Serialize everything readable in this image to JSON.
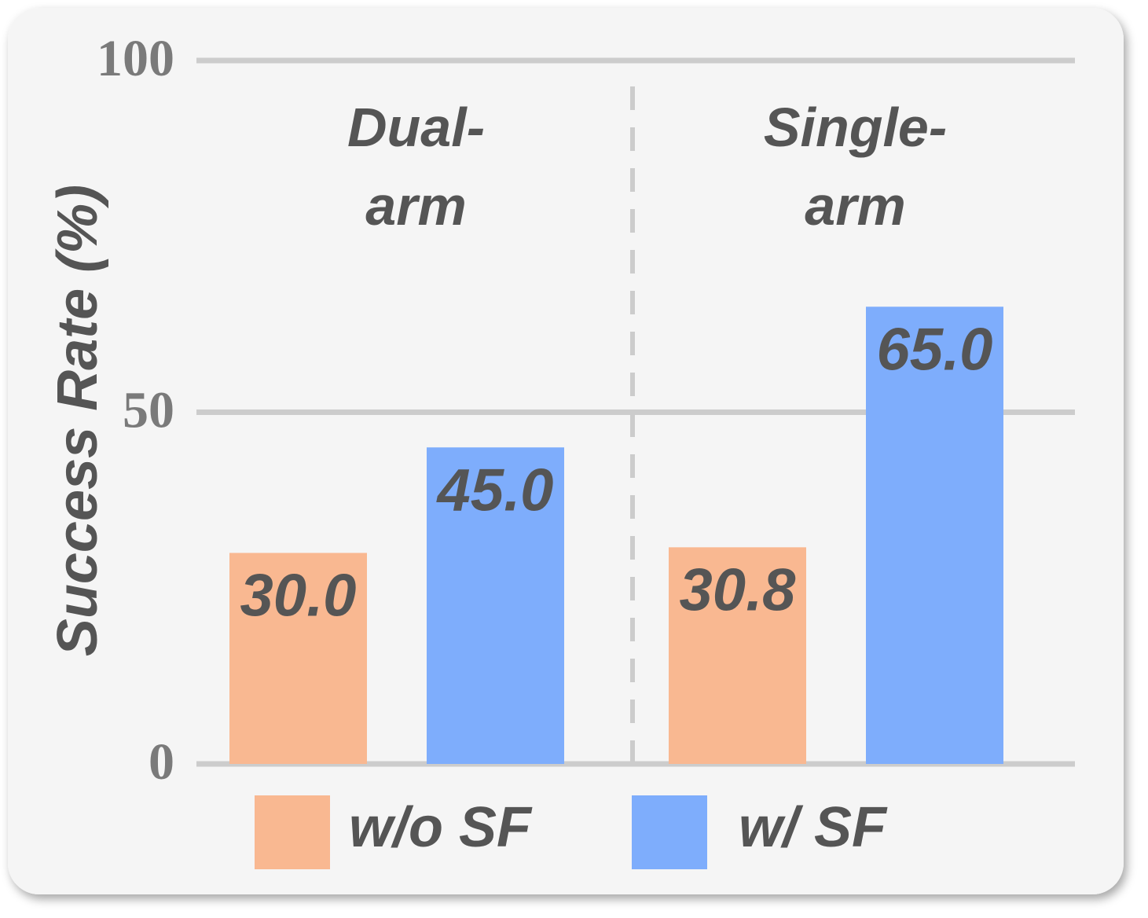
{
  "chart_data": {
    "type": "bar",
    "ylabel": "Success Rate (%)",
    "categories": [
      "Dual-arm",
      "Single-arm"
    ],
    "series": [
      {
        "name": "w/o SF",
        "color": "#f9b891",
        "values": [
          30.0,
          30.8
        ],
        "value_labels": [
          "30.0",
          "30.8"
        ]
      },
      {
        "name": "w/ SF",
        "color": "#7eadfc",
        "values": [
          45.0,
          65.0
        ],
        "value_labels": [
          "45.0",
          "65.0"
        ]
      }
    ],
    "ylim": [
      0,
      100
    ],
    "yticks": [
      0,
      50,
      100
    ],
    "grid": true,
    "legend": "bottom"
  }
}
